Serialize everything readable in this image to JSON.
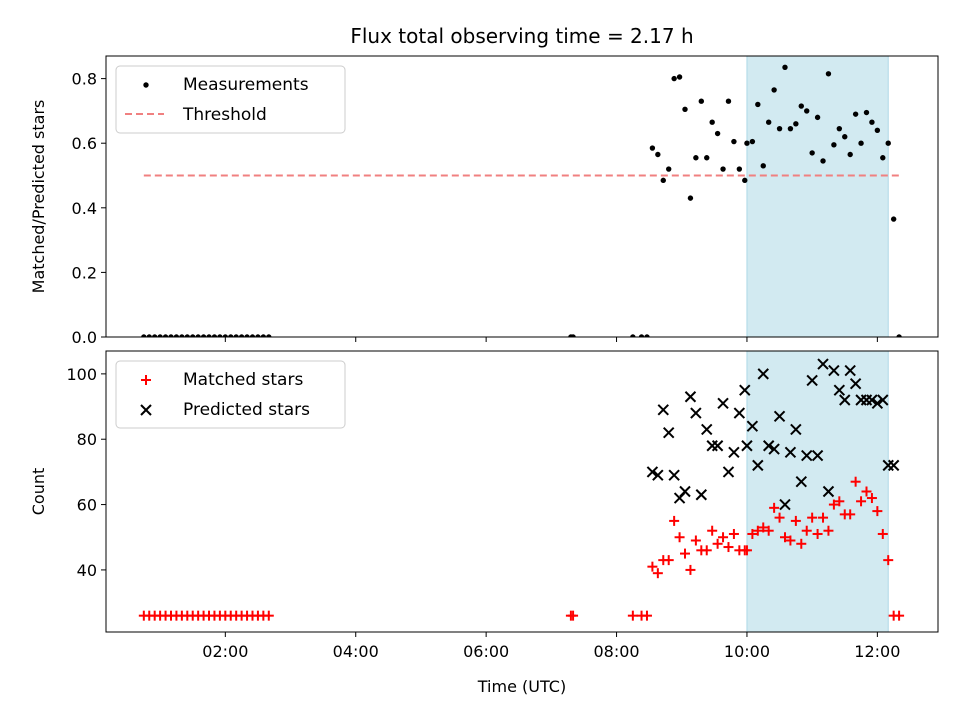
{
  "chart_data": {
    "title": "Flux total observing time = 2.17 h",
    "xlabel": "Time (UTC)",
    "x_ticks": [
      "02:00",
      "04:00",
      "06:00",
      "08:00",
      "10:00",
      "12:00"
    ],
    "shaded_interval": {
      "start": "10:00",
      "end": "12:10",
      "color": "#add8e6"
    },
    "panels": [
      {
        "type": "scatter",
        "ylabel": "Matched/Predicted stars",
        "ylim": [
          0,
          0.87
        ],
        "y_ticks": [
          "0.0",
          "0.2",
          "0.4",
          "0.6",
          "0.8"
        ],
        "legend_position": "top-left",
        "threshold": {
          "name": "Threshold",
          "value": 0.5,
          "x_start": "00:45",
          "x_end": "12:20",
          "color": "#f08080",
          "style": "dashed"
        },
        "series": [
          {
            "name": "Measurements",
            "marker": "dot",
            "color": "#000000",
            "points": [
              [
                "00:45",
                0
              ],
              [
                "00:50",
                0
              ],
              [
                "00:55",
                0
              ],
              [
                "01:00",
                0
              ],
              [
                "01:05",
                0
              ],
              [
                "01:10",
                0
              ],
              [
                "01:15",
                0
              ],
              [
                "01:20",
                0
              ],
              [
                "01:25",
                0
              ],
              [
                "01:30",
                0
              ],
              [
                "01:35",
                0
              ],
              [
                "01:40",
                0
              ],
              [
                "01:45",
                0
              ],
              [
                "01:50",
                0
              ],
              [
                "01:55",
                0
              ],
              [
                "02:00",
                0
              ],
              [
                "02:05",
                0
              ],
              [
                "02:10",
                0
              ],
              [
                "02:15",
                0
              ],
              [
                "02:20",
                0
              ],
              [
                "02:25",
                0
              ],
              [
                "02:30",
                0
              ],
              [
                "02:35",
                0
              ],
              [
                "02:40",
                0
              ],
              [
                "07:18",
                0
              ],
              [
                "07:20",
                0
              ],
              [
                "08:15",
                0
              ],
              [
                "08:23",
                0
              ],
              [
                "08:28",
                0
              ],
              [
                "08:33",
                0.585
              ],
              [
                "08:38",
                0.565
              ],
              [
                "08:43",
                0.485
              ],
              [
                "08:48",
                0.52
              ],
              [
                "08:53",
                0.8
              ],
              [
                "08:58",
                0.805
              ],
              [
                "09:03",
                0.705
              ],
              [
                "09:08",
                0.43
              ],
              [
                "09:13",
                0.555
              ],
              [
                "09:18",
                0.73
              ],
              [
                "09:23",
                0.555
              ],
              [
                "09:28",
                0.665
              ],
              [
                "09:33",
                0.63
              ],
              [
                "09:38",
                0.52
              ],
              [
                "09:43",
                0.73
              ],
              [
                "09:48",
                0.605
              ],
              [
                "09:53",
                0.52
              ],
              [
                "09:58",
                0.485
              ],
              [
                "10:00",
                0.6
              ],
              [
                "10:05",
                0.605
              ],
              [
                "10:10",
                0.72
              ],
              [
                "10:15",
                0.53
              ],
              [
                "10:20",
                0.665
              ],
              [
                "10:25",
                0.765
              ],
              [
                "10:30",
                0.645
              ],
              [
                "10:35",
                0.835
              ],
              [
                "10:40",
                0.645
              ],
              [
                "10:45",
                0.66
              ],
              [
                "10:50",
                0.715
              ],
              [
                "10:55",
                0.7
              ],
              [
                "11:00",
                0.57
              ],
              [
                "11:05",
                0.68
              ],
              [
                "11:10",
                0.545
              ],
              [
                "11:15",
                0.815
              ],
              [
                "11:20",
                0.595
              ],
              [
                "11:25",
                0.645
              ],
              [
                "11:30",
                0.62
              ],
              [
                "11:35",
                0.565
              ],
              [
                "11:40",
                0.69
              ],
              [
                "11:45",
                0.6
              ],
              [
                "11:50",
                0.695
              ],
              [
                "11:55",
                0.665
              ],
              [
                "12:00",
                0.64
              ],
              [
                "12:05",
                0.555
              ],
              [
                "12:10",
                0.6
              ],
              [
                "12:15",
                0.365
              ],
              [
                "12:20",
                0
              ]
            ]
          }
        ]
      },
      {
        "type": "scatter",
        "ylabel": "Count",
        "ylim": [
          21,
          107
        ],
        "y_ticks": [
          "40",
          "60",
          "80",
          "100"
        ],
        "legend_position": "top-left",
        "series": [
          {
            "name": "Matched stars",
            "marker": "plus",
            "color": "#ff0000",
            "points": [
              [
                "00:45",
                26
              ],
              [
                "00:50",
                26
              ],
              [
                "00:55",
                26
              ],
              [
                "01:00",
                26
              ],
              [
                "01:05",
                26
              ],
              [
                "01:10",
                26
              ],
              [
                "01:15",
                26
              ],
              [
                "01:20",
                26
              ],
              [
                "01:25",
                26
              ],
              [
                "01:30",
                26
              ],
              [
                "01:35",
                26
              ],
              [
                "01:40",
                26
              ],
              [
                "01:45",
                26
              ],
              [
                "01:50",
                26
              ],
              [
                "01:55",
                26
              ],
              [
                "02:00",
                26
              ],
              [
                "02:05",
                26
              ],
              [
                "02:10",
                26
              ],
              [
                "02:15",
                26
              ],
              [
                "02:20",
                26
              ],
              [
                "02:25",
                26
              ],
              [
                "02:30",
                26
              ],
              [
                "02:35",
                26
              ],
              [
                "02:40",
                26
              ],
              [
                "07:18",
                26
              ],
              [
                "07:20",
                26
              ],
              [
                "08:15",
                26
              ],
              [
                "08:23",
                26
              ],
              [
                "08:28",
                26
              ],
              [
                "08:33",
                41
              ],
              [
                "08:38",
                39
              ],
              [
                "08:43",
                43
              ],
              [
                "08:48",
                43
              ],
              [
                "08:53",
                55
              ],
              [
                "08:58",
                50
              ],
              [
                "09:03",
                45
              ],
              [
                "09:08",
                40
              ],
              [
                "09:13",
                49
              ],
              [
                "09:18",
                46
              ],
              [
                "09:23",
                46
              ],
              [
                "09:28",
                52
              ],
              [
                "09:33",
                48
              ],
              [
                "09:38",
                50
              ],
              [
                "09:43",
                47
              ],
              [
                "09:48",
                51
              ],
              [
                "09:53",
                46
              ],
              [
                "09:58",
                46
              ],
              [
                "10:00",
                46
              ],
              [
                "10:05",
                51
              ],
              [
                "10:10",
                52
              ],
              [
                "10:15",
                53
              ],
              [
                "10:20",
                52
              ],
              [
                "10:25",
                59
              ],
              [
                "10:30",
                56
              ],
              [
                "10:35",
                50
              ],
              [
                "10:40",
                49
              ],
              [
                "10:45",
                55
              ],
              [
                "10:50",
                48
              ],
              [
                "10:55",
                52
              ],
              [
                "11:00",
                56
              ],
              [
                "11:05",
                51
              ],
              [
                "11:10",
                56
              ],
              [
                "11:15",
                52
              ],
              [
                "11:20",
                60
              ],
              [
                "11:25",
                61
              ],
              [
                "11:30",
                57
              ],
              [
                "11:35",
                57
              ],
              [
                "11:40",
                67
              ],
              [
                "11:45",
                61
              ],
              [
                "11:50",
                64
              ],
              [
                "11:55",
                62
              ],
              [
                "12:00",
                58
              ],
              [
                "12:05",
                51
              ],
              [
                "12:10",
                43
              ],
              [
                "12:15",
                26
              ],
              [
                "12:20",
                26
              ]
            ]
          },
          {
            "name": "Predicted stars",
            "marker": "x",
            "color": "#000000",
            "points": [
              [
                "08:33",
                70
              ],
              [
                "08:38",
                69
              ],
              [
                "08:43",
                89
              ],
              [
                "08:48",
                82
              ],
              [
                "08:53",
                69
              ],
              [
                "08:58",
                62
              ],
              [
                "09:03",
                64
              ],
              [
                "09:08",
                93
              ],
              [
                "09:13",
                88
              ],
              [
                "09:18",
                63
              ],
              [
                "09:23",
                83
              ],
              [
                "09:28",
                78
              ],
              [
                "09:33",
                78
              ],
              [
                "09:38",
                91
              ],
              [
                "09:43",
                70
              ],
              [
                "09:48",
                76
              ],
              [
                "09:53",
                88
              ],
              [
                "09:58",
                95
              ],
              [
                "10:00",
                78
              ],
              [
                "10:05",
                84
              ],
              [
                "10:10",
                72
              ],
              [
                "10:15",
                100
              ],
              [
                "10:20",
                78
              ],
              [
                "10:25",
                77
              ],
              [
                "10:30",
                87
              ],
              [
                "10:35",
                60
              ],
              [
                "10:40",
                76
              ],
              [
                "10:45",
                83
              ],
              [
                "10:50",
                67
              ],
              [
                "10:55",
                75
              ],
              [
                "11:00",
                98
              ],
              [
                "11:05",
                75
              ],
              [
                "11:10",
                103
              ],
              [
                "11:15",
                64
              ],
              [
                "11:20",
                101
              ],
              [
                "11:25",
                95
              ],
              [
                "11:30",
                92
              ],
              [
                "11:35",
                101
              ],
              [
                "11:40",
                97
              ],
              [
                "11:45",
                92
              ],
              [
                "11:50",
                92
              ],
              [
                "11:55",
                92
              ],
              [
                "12:00",
                91
              ],
              [
                "12:05",
                92
              ],
              [
                "12:10",
                72
              ],
              [
                "12:15",
                72
              ]
            ]
          }
        ]
      }
    ]
  }
}
